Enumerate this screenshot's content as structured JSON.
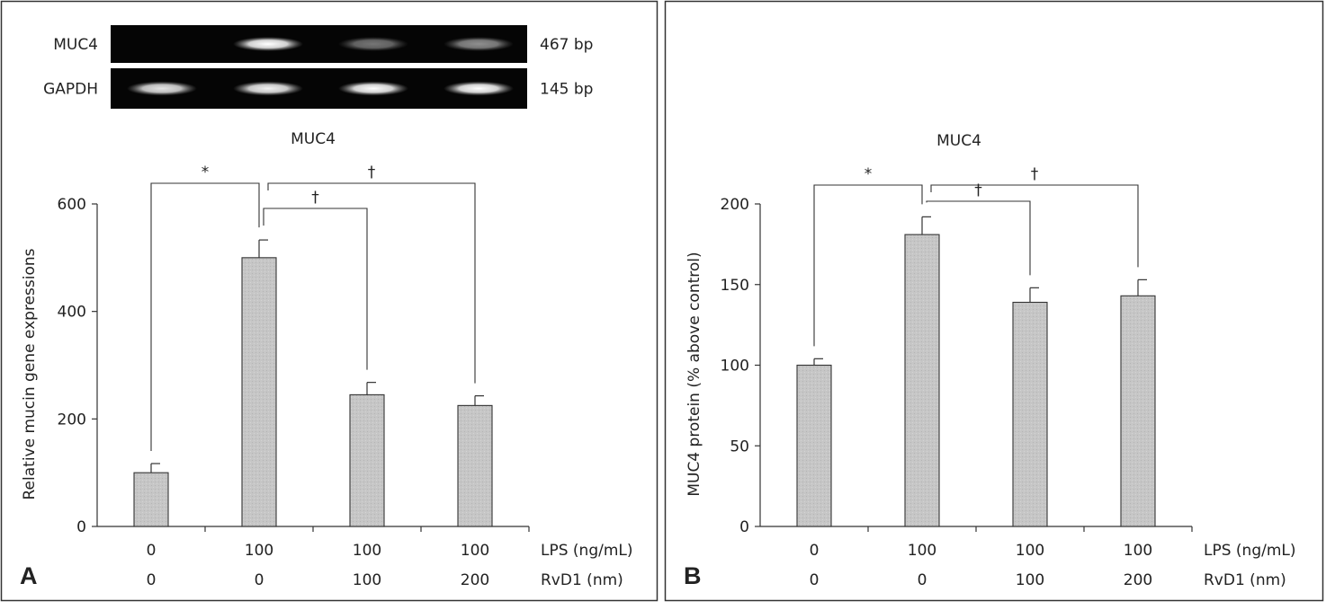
{
  "panels": [
    {
      "letter": "A",
      "gel": {
        "rows": [
          {
            "gene": "MUC4",
            "size": "467 bp",
            "intensities": [
              0.0,
              1.0,
              0.45,
              0.55
            ]
          },
          {
            "gene": "GAPDH",
            "size": "145 bp",
            "intensities": [
              0.9,
              0.95,
              1.0,
              1.0
            ]
          }
        ]
      },
      "conditions": {
        "lps_label": "LPS (ng/mL)",
        "lps": [
          "0",
          "100",
          "100",
          "100"
        ],
        "rvd1_label": "RvD1 (nm)",
        "rvd1": [
          "0",
          "0",
          "100",
          "200"
        ]
      },
      "brackets": [
        {
          "from": 0,
          "to": 1,
          "symbol": "*"
        },
        {
          "from": 1,
          "to": 3,
          "symbol": "†"
        },
        {
          "from": 1,
          "to": 2,
          "symbol": "†"
        }
      ]
    },
    {
      "letter": "B",
      "conditions": {
        "lps_label": "LPS (ng/mL)",
        "lps": [
          "0",
          "100",
          "100",
          "100"
        ],
        "rvd1_label": "RvD1 (nm)",
        "rvd1": [
          "0",
          "0",
          "100",
          "200"
        ]
      },
      "brackets": [
        {
          "from": 0,
          "to": 1,
          "symbol": "*"
        },
        {
          "from": 1,
          "to": 3,
          "symbol": "†"
        },
        {
          "from": 1,
          "to": 2,
          "symbol": "†"
        }
      ]
    }
  ],
  "chart_data": [
    {
      "type": "bar",
      "title": "MUC4",
      "xlabel": "",
      "ylabel": "Relative mucin gene expressions",
      "categories": [
        "0 / 0",
        "100 / 0",
        "100 / 100",
        "100 / 200"
      ],
      "values": [
        100,
        500,
        245,
        225
      ],
      "errors": [
        17,
        33,
        23,
        18
      ],
      "ylim": [
        0,
        600
      ],
      "yticks": [
        0,
        200,
        400,
        600
      ],
      "bar_color": "#c8c8c8",
      "grid": false
    },
    {
      "type": "bar",
      "title": "MUC4",
      "xlabel": "",
      "ylabel": "MUC4 protein (% above control)",
      "categories": [
        "0 / 0",
        "100 / 0",
        "100 / 100",
        "100 / 200"
      ],
      "values": [
        100,
        181,
        139,
        143
      ],
      "errors": [
        4,
        11,
        9,
        10
      ],
      "ylim": [
        0,
        200
      ],
      "yticks": [
        0,
        50,
        100,
        150,
        200
      ],
      "bar_color": "#c8c8c8",
      "grid": false
    }
  ]
}
